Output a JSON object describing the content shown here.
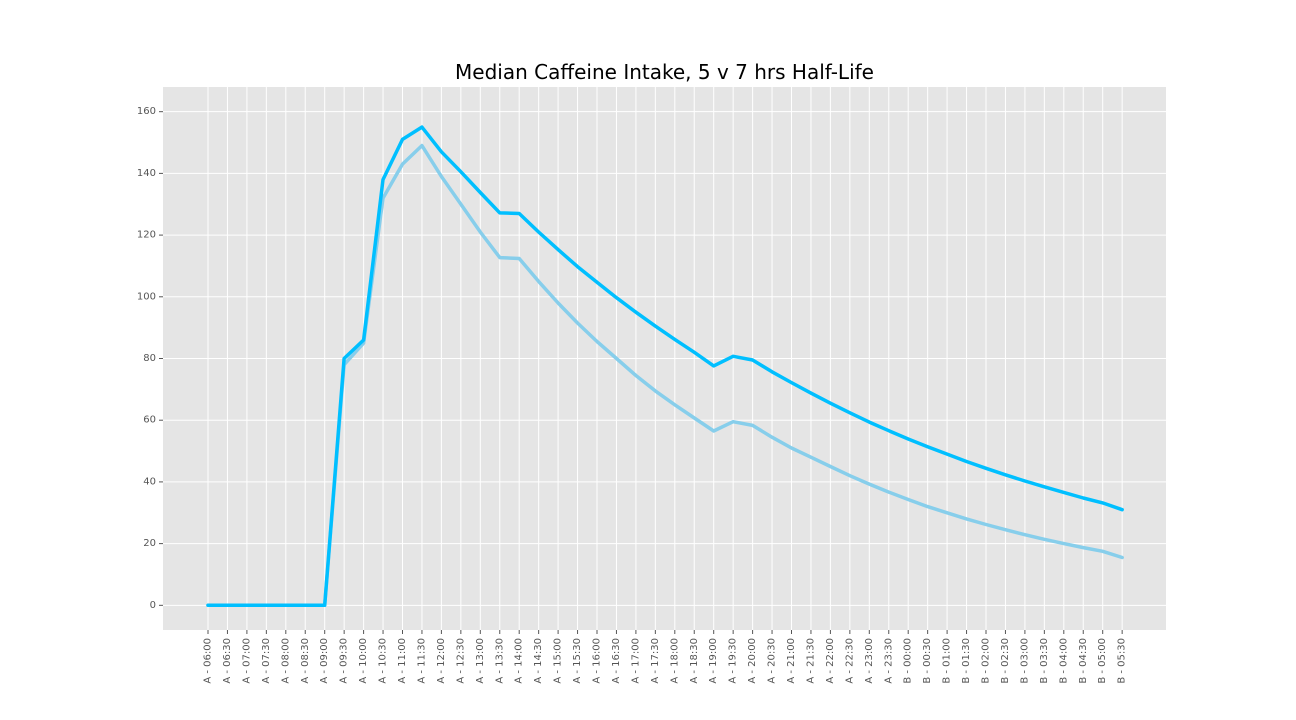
{
  "chart_data": {
    "type": "line",
    "title": "Median Caffeine Intake, 5 v 7 hrs Half-Life",
    "xlabel": "",
    "ylabel": "",
    "ylim": [
      -8,
      168
    ],
    "yticks": [
      0,
      20,
      40,
      60,
      80,
      100,
      120,
      140,
      160
    ],
    "grid": true,
    "categories": [
      "A - 06:00",
      "A - 06:30",
      "A - 07:00",
      "A - 07:30",
      "A - 08:00",
      "A - 08:30",
      "A - 09:00",
      "A - 09:30",
      "A - 10:00",
      "A - 10:30",
      "A - 11:00",
      "A - 11:30",
      "A - 12:00",
      "A - 12:30",
      "A - 13:00",
      "A - 13:30",
      "A - 14:00",
      "A - 14:30",
      "A - 15:00",
      "A - 15:30",
      "A - 16:00",
      "A - 16:30",
      "A - 17:00",
      "A - 17:30",
      "A - 18:00",
      "A - 18:30",
      "A - 19:00",
      "A - 19:30",
      "A - 20:00",
      "A - 20:30",
      "A - 21:00",
      "A - 21:30",
      "A - 22:00",
      "A - 22:30",
      "A - 23:00",
      "A - 23:30",
      "B - 00:00",
      "B - 00:30",
      "B - 01:00",
      "B - 01:30",
      "B - 02:00",
      "B - 02:30",
      "B - 03:00",
      "B - 03:30",
      "B - 04:00",
      "B - 04:30",
      "B - 05:00",
      "B - 05:30"
    ],
    "series": [
      {
        "color": "#87ceeb",
        "values": [
          0,
          0,
          0,
          0,
          0,
          0,
          0,
          78,
          85,
          132,
          143,
          149,
          139,
          130,
          121,
          112.7,
          112.4,
          105,
          98,
          91.5,
          85.5,
          80,
          74.5,
          69.5,
          65,
          60.7,
          56.5,
          59.5,
          58.3,
          54.5,
          51,
          48,
          45,
          42,
          39.3,
          36.7,
          34.3,
          32,
          30,
          28,
          26.2,
          24.5,
          22.9,
          21.4,
          20,
          18.7,
          17.5,
          15.5
        ]
      },
      {
        "color": "#00bfff",
        "values": [
          0,
          0,
          0,
          0,
          0,
          0,
          0,
          80,
          86,
          138,
          151,
          155,
          147,
          140.5,
          133.8,
          127.2,
          127,
          121,
          115.3,
          109.8,
          104.7,
          99.7,
          95,
          90.5,
          86.2,
          82,
          77.6,
          80.7,
          79.5,
          75.7,
          72.2,
          68.8,
          65.5,
          62.4,
          59.4,
          56.6,
          53.9,
          51.4,
          49,
          46.6,
          44.4,
          42.3,
          40.3,
          38.4,
          36.6,
          34.8,
          33.2,
          31
        ]
      }
    ]
  }
}
